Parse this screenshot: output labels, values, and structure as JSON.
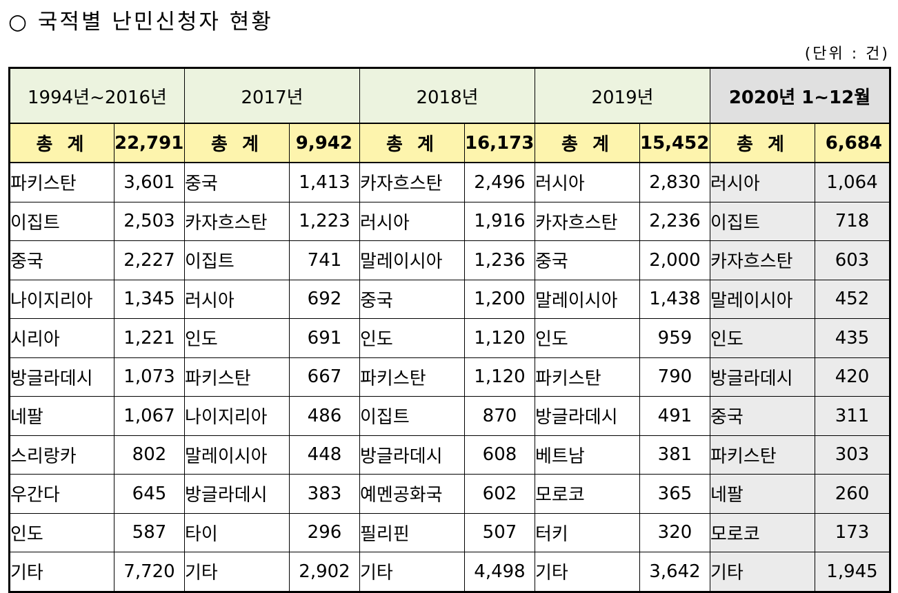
{
  "title": "○ 국적별 난민신청자 현황",
  "unit": "(단위 : 건)",
  "total_label": "총 계",
  "periods": [
    {
      "label": "1994년~2016년",
      "total": "22,791",
      "rows": [
        {
          "country": "파키스탄",
          "count": "3,601"
        },
        {
          "country": "이집트",
          "count": "2,503"
        },
        {
          "country": "중국",
          "count": "2,227"
        },
        {
          "country": "나이지리아",
          "count": "1,345"
        },
        {
          "country": "시리아",
          "count": "1,221"
        },
        {
          "country": "방글라데시",
          "count": "1,073"
        },
        {
          "country": "네팔",
          "count": "1,067"
        },
        {
          "country": "스리랑카",
          "count": "802"
        },
        {
          "country": "우간다",
          "count": "645"
        },
        {
          "country": "인도",
          "count": "587"
        },
        {
          "country": "기타",
          "count": "7,720"
        }
      ]
    },
    {
      "label": "2017년",
      "total": "9,942",
      "rows": [
        {
          "country": "중국",
          "count": "1,413"
        },
        {
          "country": "카자흐스탄",
          "count": "1,223"
        },
        {
          "country": "이집트",
          "count": "741"
        },
        {
          "country": "러시아",
          "count": "692"
        },
        {
          "country": "인도",
          "count": "691"
        },
        {
          "country": "파키스탄",
          "count": "667"
        },
        {
          "country": "나이지리아",
          "count": "486"
        },
        {
          "country": "말레이시아",
          "count": "448"
        },
        {
          "country": "방글라데시",
          "count": "383"
        },
        {
          "country": "타이",
          "count": "296"
        },
        {
          "country": "기타",
          "count": "2,902"
        }
      ]
    },
    {
      "label": "2018년",
      "total": "16,173",
      "rows": [
        {
          "country": "카자흐스탄",
          "count": "2,496"
        },
        {
          "country": "러시아",
          "count": "1,916"
        },
        {
          "country": "말레이시아",
          "count": "1,236"
        },
        {
          "country": "중국",
          "count": "1,200"
        },
        {
          "country": "인도",
          "count": "1,120"
        },
        {
          "country": "파키스탄",
          "count": "1,120"
        },
        {
          "country": "이집트",
          "count": "870"
        },
        {
          "country": "방글라데시",
          "count": "608"
        },
        {
          "country": "예멘공화국",
          "count": "602"
        },
        {
          "country": "필리핀",
          "count": "507"
        },
        {
          "country": "기타",
          "count": "4,498"
        }
      ]
    },
    {
      "label": "2019년",
      "total": "15,452",
      "rows": [
        {
          "country": "러시아",
          "count": "2,830"
        },
        {
          "country": "카자흐스탄",
          "count": "2,236"
        },
        {
          "country": "중국",
          "count": "2,000"
        },
        {
          "country": "말레이시아",
          "count": "1,438"
        },
        {
          "country": "인도",
          "count": "959"
        },
        {
          "country": "파키스탄",
          "count": "790"
        },
        {
          "country": "방글라데시",
          "count": "491"
        },
        {
          "country": "베트남",
          "count": "381"
        },
        {
          "country": "모로코",
          "count": "365"
        },
        {
          "country": "터키",
          "count": "320"
        },
        {
          "country": "기타",
          "count": "3,642"
        }
      ]
    },
    {
      "label": "2020년 1~12월",
      "total": "6,684",
      "rows": [
        {
          "country": "러시아",
          "count": "1,064"
        },
        {
          "country": "이집트",
          "count": "718"
        },
        {
          "country": "카자흐스탄",
          "count": "603"
        },
        {
          "country": "말레이시아",
          "count": "452"
        },
        {
          "country": "인도",
          "count": "435"
        },
        {
          "country": "방글라데시",
          "count": "420"
        },
        {
          "country": "중국",
          "count": "311"
        },
        {
          "country": "파키스탄",
          "count": "303"
        },
        {
          "country": "네팔",
          "count": "260"
        },
        {
          "country": "모로코",
          "count": "173"
        },
        {
          "country": "기타",
          "count": "1,945"
        }
      ]
    }
  ]
}
